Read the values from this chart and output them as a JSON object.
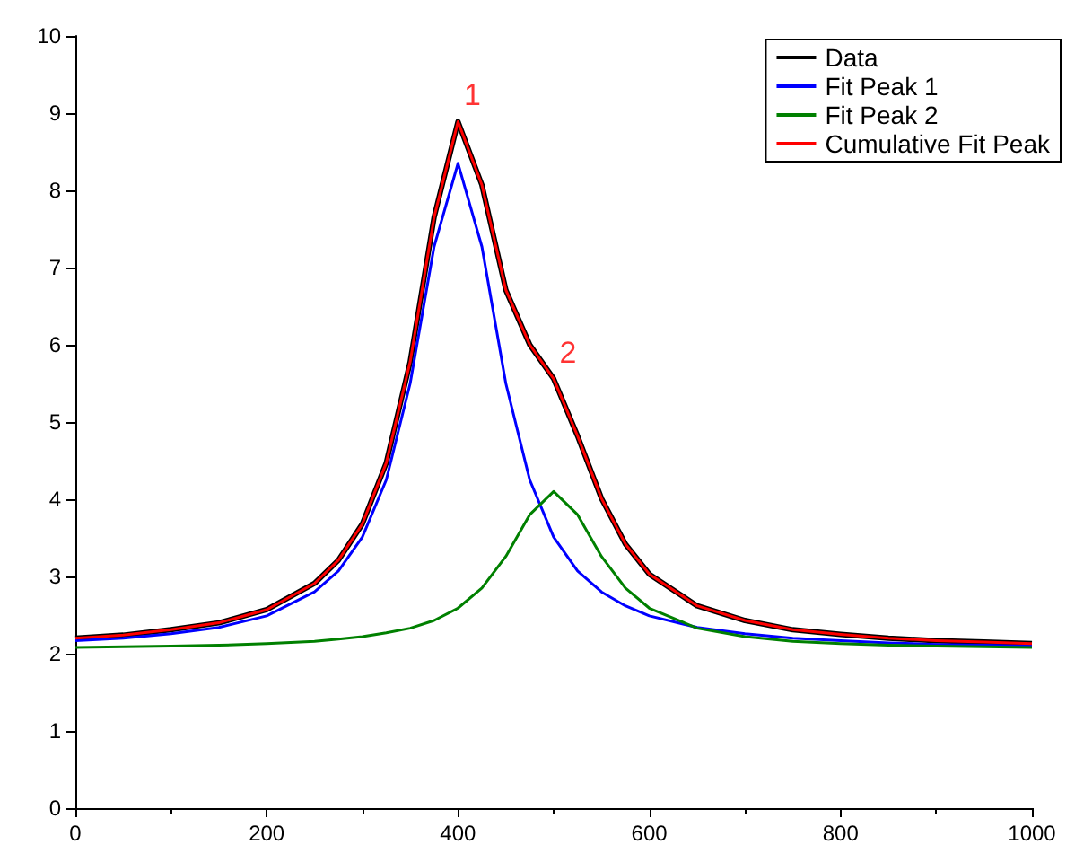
{
  "chart_data": {
    "type": "line",
    "x": [
      0,
      50,
      100,
      150,
      200,
      250,
      275,
      300,
      325,
      350,
      375,
      400,
      425,
      450,
      475,
      500,
      525,
      550,
      575,
      600,
      650,
      700,
      750,
      800,
      850,
      900,
      950,
      1000
    ],
    "series": [
      {
        "name": "Data",
        "color": "#000000",
        "values": [
          2.2,
          2.24,
          2.31,
          2.4,
          2.57,
          2.91,
          3.21,
          3.68,
          4.47,
          5.78,
          7.65,
          8.89,
          8.07,
          6.71,
          6.0,
          5.56,
          4.82,
          4.01,
          3.42,
          3.03,
          2.62,
          2.43,
          2.31,
          2.25,
          2.2,
          2.17,
          2.15,
          2.13
        ]
      },
      {
        "name": "Fit Peak 1",
        "color": "#0000ff",
        "values": [
          2.17,
          2.2,
          2.26,
          2.34,
          2.49,
          2.8,
          3.07,
          3.51,
          4.25,
          5.5,
          7.27,
          8.35,
          7.27,
          5.5,
          4.25,
          3.51,
          3.07,
          2.8,
          2.62,
          2.49,
          2.34,
          2.26,
          2.2,
          2.17,
          2.14,
          2.12,
          2.11,
          2.1
        ]
      },
      {
        "name": "Fit Peak 2",
        "color": "#008000",
        "values": [
          2.08,
          2.09,
          2.1,
          2.11,
          2.13,
          2.16,
          2.19,
          2.22,
          2.27,
          2.33,
          2.43,
          2.59,
          2.85,
          3.26,
          3.8,
          4.1,
          3.8,
          3.26,
          2.85,
          2.59,
          2.33,
          2.22,
          2.16,
          2.13,
          2.11,
          2.1,
          2.09,
          2.08
        ]
      },
      {
        "name": "Cumulative Fit Peak",
        "color": "#ff0000",
        "values": [
          2.2,
          2.24,
          2.31,
          2.4,
          2.57,
          2.91,
          3.21,
          3.68,
          4.47,
          5.78,
          7.65,
          8.89,
          8.07,
          6.71,
          6.0,
          5.56,
          4.82,
          4.01,
          3.42,
          3.03,
          2.62,
          2.43,
          2.31,
          2.25,
          2.2,
          2.17,
          2.15,
          2.13
        ]
      }
    ],
    "annotations": [
      {
        "text": "1",
        "x": 400,
        "y": 8.89
      },
      {
        "text": "2",
        "x": 500,
        "y": 5.56
      }
    ],
    "xlim": [
      0,
      1000
    ],
    "xticks": [
      0,
      200,
      400,
      600,
      800,
      1000
    ],
    "ylim": [
      0,
      10
    ],
    "yticks": [
      0,
      1,
      2,
      3,
      4,
      5,
      6,
      7,
      8,
      9,
      10
    ],
    "grid": false,
    "legend": "top right",
    "marker": "none",
    "line_style": "solid"
  }
}
